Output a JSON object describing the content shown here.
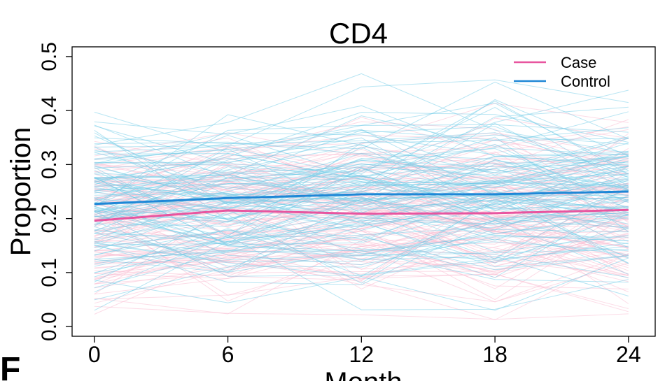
{
  "chart_data": {
    "type": "line",
    "title": "CD4",
    "xlabel": "Month",
    "ylabel": "Proportion",
    "x": [
      0,
      6,
      12,
      18,
      24
    ],
    "x_tick_labels": [
      "0",
      "6",
      "12",
      "18",
      "24"
    ],
    "y_ticks": [
      0.0,
      0.1,
      0.2,
      0.3,
      0.4,
      0.5
    ],
    "y_tick_labels": [
      "0.0",
      "0.1",
      "0.2",
      "0.3",
      "0.4",
      "0.5"
    ],
    "xlim": [
      -1.0,
      25.2
    ],
    "ylim": [
      -0.018,
      0.518
    ],
    "legend_position": "top-right",
    "series": [
      {
        "name": "Case",
        "color": "#e8559f",
        "values": [
          0.196,
          0.215,
          0.209,
          0.21,
          0.216
        ]
      },
      {
        "name": "Control",
        "color": "#1f87d6",
        "values": [
          0.227,
          0.238,
          0.245,
          0.245,
          0.25
        ]
      }
    ],
    "individual_trajectories": {
      "case_color": "#f9c0d4",
      "control_color": "#6fcbe8",
      "case_count": 120,
      "control_count": 120,
      "case_range": [
        0.0,
        0.47
      ],
      "control_range": [
        0.03,
        0.49
      ]
    }
  },
  "panel_label": "F"
}
